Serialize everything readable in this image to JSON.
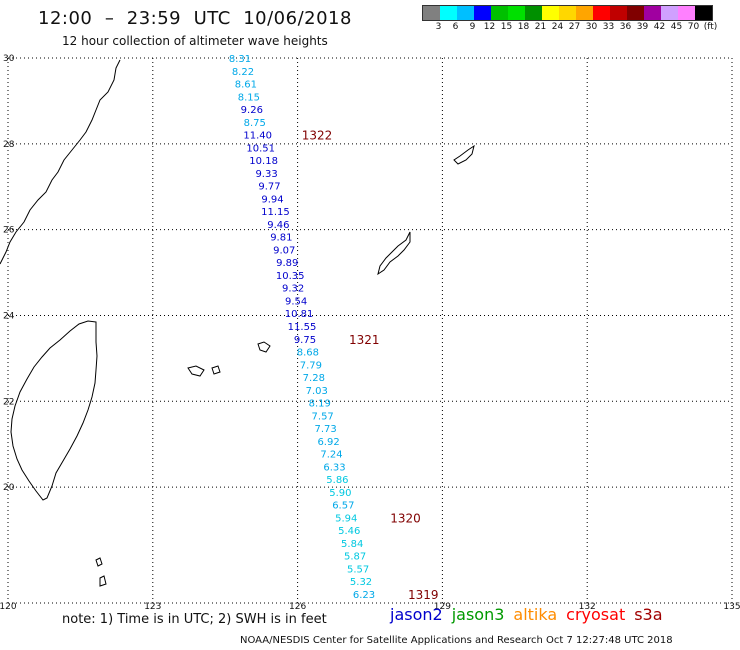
{
  "header": {
    "title": "12:00  –  23:59  UTC  10/06/2018",
    "subtitle": "12 hour collection of altimeter wave heights"
  },
  "legend": {
    "unit": "(ft)",
    "colors": [
      "#808080",
      "#00ffff",
      "#00bfff",
      "#0000ff",
      "#00c000",
      "#00e000",
      "#009000",
      "#ffff00",
      "#ffd700",
      "#ffa500",
      "#ff0000",
      "#c00000",
      "#800000",
      "#a000a0",
      "#d0a0ff",
      "#ff80ff",
      "#000000"
    ],
    "labels": [
      "3",
      "6",
      "9",
      "12",
      "15",
      "18",
      "21",
      "24",
      "27",
      "30",
      "33",
      "36",
      "39",
      "42",
      "45",
      "70"
    ]
  },
  "axes": {
    "lat_labels": [
      "30",
      "28",
      "26",
      "24",
      "22",
      "20"
    ],
    "lon_labels": [
      "120",
      "123",
      "126",
      "129",
      "132",
      "135"
    ]
  },
  "tracks": [
    {
      "label": "1322",
      "points": [
        {
          "lat": 29.9,
          "v": "8.31"
        },
        {
          "lat": 29.6,
          "v": "8.22"
        },
        {
          "lat": 29.3,
          "v": "8.61"
        },
        {
          "lat": 29.0,
          "v": "8.15"
        },
        {
          "lat": 28.7,
          "v": "9.26"
        },
        {
          "lat": 28.4,
          "v": "8.75"
        },
        {
          "lat": 28.1,
          "v": "11.40"
        }
      ]
    },
    {
      "label": "",
      "points": [
        {
          "lat": 27.8,
          "v": "10.51"
        },
        {
          "lat": 27.5,
          "v": "10.18"
        },
        {
          "lat": 27.2,
          "v": "9.33"
        },
        {
          "lat": 26.9,
          "v": "9.77"
        },
        {
          "lat": 26.6,
          "v": "9.94"
        },
        {
          "lat": 26.3,
          "v": "11.15"
        },
        {
          "lat": 26.0,
          "v": "9.46"
        },
        {
          "lat": 25.7,
          "v": "9.81"
        },
        {
          "lat": 25.4,
          "v": "9.07"
        },
        {
          "lat": 25.1,
          "v": "9.89"
        }
      ]
    },
    {
      "label": "1321",
      "points": [
        {
          "lat": 24.8,
          "v": "10.35"
        },
        {
          "lat": 24.5,
          "v": "9.32"
        },
        {
          "lat": 24.2,
          "v": "9.54"
        },
        {
          "lat": 23.9,
          "v": "10.81"
        },
        {
          "lat": 23.6,
          "v": "11.55"
        },
        {
          "lat": 23.3,
          "v": "9.75"
        }
      ]
    },
    {
      "label": "",
      "points": [
        {
          "lat": 23.0,
          "v": "8.68"
        },
        {
          "lat": 22.7,
          "v": "7.79"
        },
        {
          "lat": 22.4,
          "v": "7.28"
        },
        {
          "lat": 22.1,
          "v": "7.03"
        },
        {
          "lat": 21.8,
          "v": "8.19"
        },
        {
          "lat": 21.5,
          "v": "7.57"
        },
        {
          "lat": 21.2,
          "v": "7.73"
        },
        {
          "lat": 20.9,
          "v": "6.92"
        },
        {
          "lat": 20.6,
          "v": "7.24"
        }
      ]
    },
    {
      "label": "1320",
      "points": [
        {
          "lat": 20.3,
          "v": "6.33"
        },
        {
          "lat": 20.0,
          "v": "5.86"
        },
        {
          "lat": 19.7,
          "v": "5.90"
        },
        {
          "lat": 19.4,
          "v": "6.57"
        },
        {
          "lat": 19.1,
          "v": "5.94"
        }
      ]
    },
    {
      "label": "1319",
      "points": [
        {
          "lat": 18.8,
          "v": "5.46"
        },
        {
          "lat": 18.5,
          "v": "5.84"
        },
        {
          "lat": 18.2,
          "v": "5.87"
        },
        {
          "lat": 17.9,
          "v": "5.57"
        },
        {
          "lat": 17.6,
          "v": "5.32"
        },
        {
          "lat": 17.3,
          "v": "6.23"
        }
      ]
    }
  ],
  "footer": {
    "note": "note:  1) Time is in UTC;  2) SWH is in feet",
    "credit": "NOAA/NESDIS Center for Satellite Applications and Research    Oct  7 12:27:48 UTC 2018",
    "satellites": [
      {
        "name": "jason2",
        "color": "#0000cc"
      },
      {
        "name": "jason3",
        "color": "#009900"
      },
      {
        "name": "altika",
        "color": "#ff8c00"
      },
      {
        "name": "cryosat",
        "color": "#ff0000"
      },
      {
        "name": "s3a",
        "color": "#a00000"
      }
    ]
  }
}
